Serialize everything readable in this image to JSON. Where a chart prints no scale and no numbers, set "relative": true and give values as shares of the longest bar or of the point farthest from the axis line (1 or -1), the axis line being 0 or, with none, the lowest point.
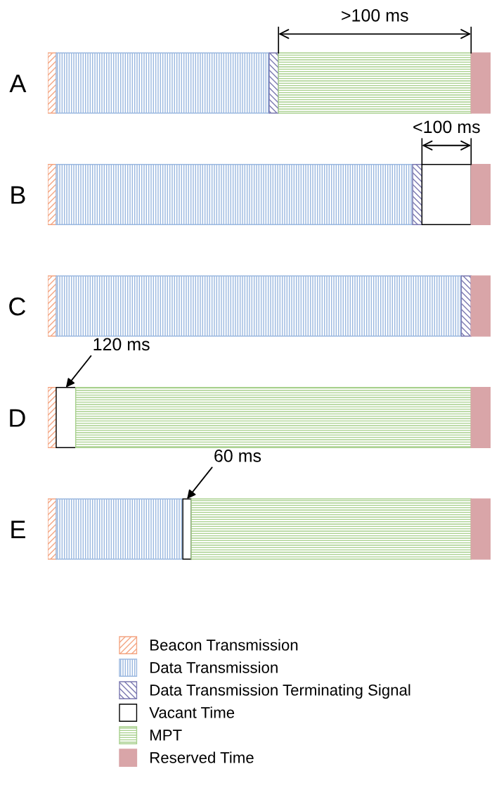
{
  "chart_data": {
    "type": "bar",
    "orientation": "horizontal",
    "stacked": true,
    "relative": true,
    "tick_labels": "y",
    "legend": "bottom",
    "categories": [
      "A",
      "B",
      "C",
      "D",
      "E"
    ],
    "series": [
      {
        "name": "Beacon Transmission",
        "color": "#f4a582",
        "values": [
          0.019,
          0.019,
          0.019,
          0.019,
          0.019
        ]
      },
      {
        "name": "Data Transmission",
        "color": "#9ab8e0",
        "values": [
          0.481,
          0.805,
          0.915,
          null,
          0.286
        ]
      },
      {
        "name": "Data Transmission Terminating Signal",
        "color": "#7a78b0",
        "values": [
          0.021,
          0.021,
          0.022,
          null,
          null
        ]
      },
      {
        "name": "Vacant Time",
        "color": "#ffffff",
        "values": [
          null,
          0.111,
          null,
          0.044,
          0.019
        ]
      },
      {
        "name": "MPT",
        "color": "#a8d08d",
        "values": [
          0.435,
          null,
          null,
          0.893,
          0.632
        ]
      },
      {
        "name": "Reserved Time",
        "color": "#d9a5a8",
        "values": [
          0.044,
          0.044,
          0.044,
          0.044,
          0.044
        ]
      }
    ],
    "annotations": [
      ">100 ms",
      "<100 ms",
      "120 ms",
      "60 ms"
    ]
  }
}
